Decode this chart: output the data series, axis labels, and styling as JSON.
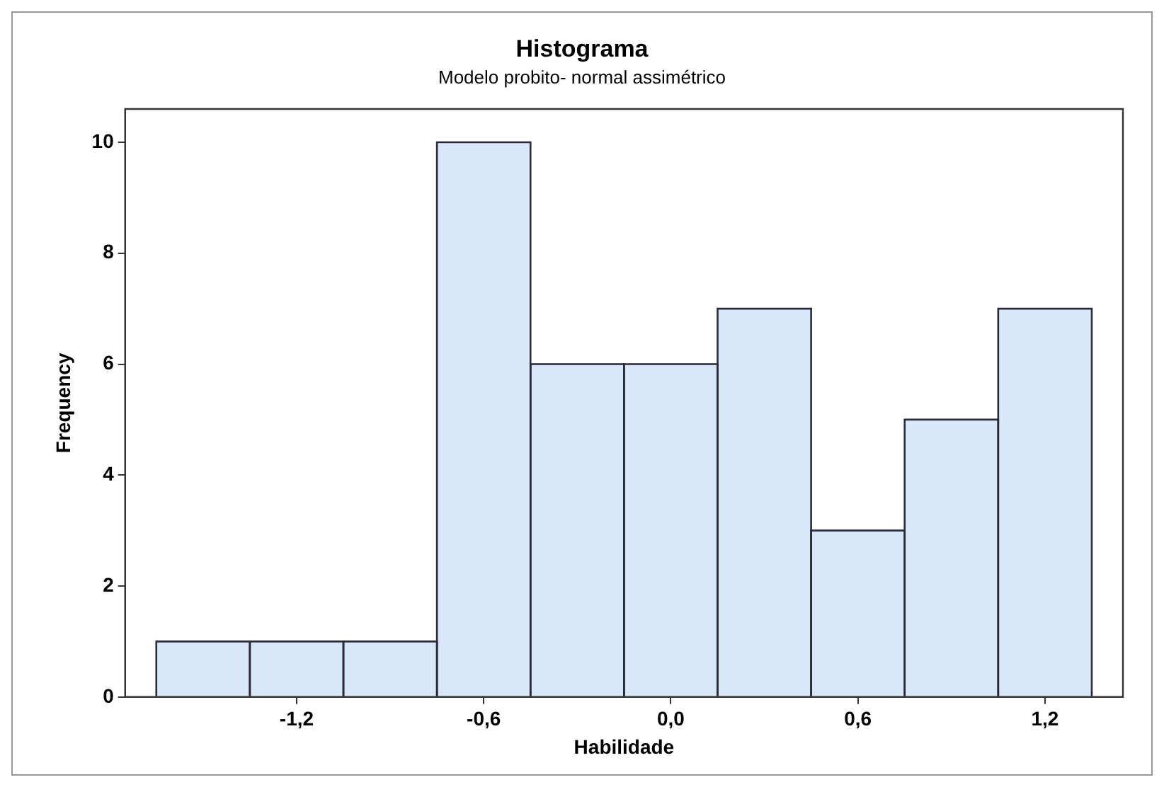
{
  "chart_data": {
    "type": "histogram",
    "title": "Histograma",
    "subtitle": "Modelo probito- normal assimétrico",
    "xlabel": "Habilidade",
    "ylabel": "Frequency",
    "bins": [
      -1.65,
      -1.35,
      -1.05,
      -0.75,
      -0.45,
      -0.15,
      0.15,
      0.45,
      0.75,
      1.05,
      1.35
    ],
    "values": [
      1,
      1,
      1,
      10,
      6,
      6,
      7,
      3,
      5,
      7
    ],
    "color": "#d9e8f8",
    "xlim": [
      -1.75,
      1.45
    ],
    "xticks": [
      {
        "value": -1.2,
        "label": "-1,2"
      },
      {
        "value": -0.6,
        "label": "-0,6"
      },
      {
        "value": 0,
        "label": "0,0"
      },
      {
        "value": 0.6,
        "label": "0,6"
      },
      {
        "value": 1.2,
        "label": "1,2"
      }
    ],
    "ylim": [
      0,
      10.6
    ],
    "yticks": [
      0,
      2,
      4,
      6,
      8,
      10
    ]
  }
}
